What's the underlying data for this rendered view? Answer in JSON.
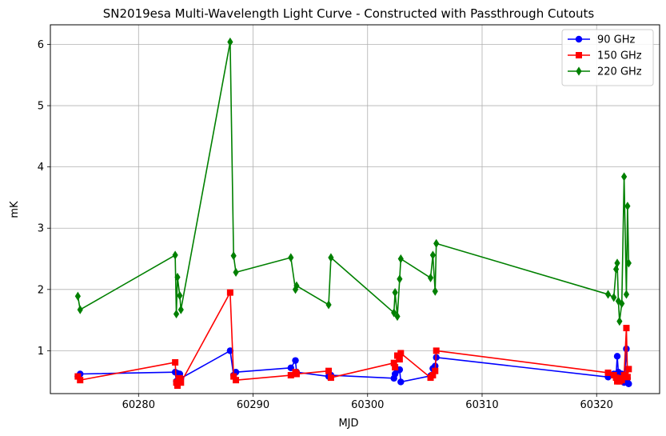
{
  "chart_data": {
    "type": "line",
    "title": "SN2019esa Multi-Wavelength Light Curve - Constructed with Passthrough Cutouts",
    "xlabel": "MJD",
    "ylabel": "mK",
    "xlim": [
      60272.3,
      60325.5
    ],
    "ylim": [
      0.3,
      6.32
    ],
    "xticks": [
      60280,
      60290,
      60300,
      60310,
      60320
    ],
    "yticks": [
      1,
      2,
      3,
      4,
      5,
      6
    ],
    "grid": true,
    "legend_position": "top-right",
    "series": [
      {
        "name": "90 GHz",
        "color": "#0000ff",
        "marker": "circle",
        "x": [
          60274.7,
          60274.9,
          60283.2,
          60283.3,
          60283.4,
          60283.6,
          60283.7,
          60288.0,
          60288.3,
          60288.5,
          60293.3,
          60293.7,
          60293.8,
          60296.6,
          60296.8,
          60302.3,
          60302.4,
          60302.6,
          60302.8,
          60302.9,
          60305.5,
          60305.7,
          60305.9,
          60306.0,
          60321.0,
          60321.5,
          60321.7,
          60321.8,
          60321.9,
          60322.0,
          60322.2,
          60322.4,
          60322.6,
          60322.7,
          60322.8
        ],
        "y": [
          0.58,
          0.62,
          0.65,
          0.5,
          0.63,
          0.62,
          0.55,
          1.0,
          0.6,
          0.65,
          0.72,
          0.84,
          0.65,
          0.58,
          0.6,
          0.55,
          0.62,
          0.68,
          0.69,
          0.49,
          0.59,
          0.71,
          0.75,
          0.89,
          0.57,
          0.62,
          0.6,
          0.91,
          0.65,
          0.52,
          0.62,
          0.48,
          1.03,
          0.55,
          0.46
        ]
      },
      {
        "name": "150 GHz",
        "color": "#ff0000",
        "marker": "square",
        "x": [
          60274.7,
          60274.9,
          60283.2,
          60283.3,
          60283.4,
          60283.6,
          60283.7,
          60288.0,
          60288.3,
          60288.5,
          60293.3,
          60293.7,
          60293.8,
          60296.6,
          60296.8,
          60302.3,
          60302.4,
          60302.6,
          60302.8,
          60302.9,
          60305.5,
          60305.7,
          60305.9,
          60306.0,
          60321.0,
          60321.5,
          60321.7,
          60321.8,
          60321.9,
          60322.0,
          60322.2,
          60322.4,
          60322.6,
          60322.7,
          60322.8
        ],
        "y": [
          0.58,
          0.52,
          0.81,
          0.48,
          0.43,
          0.55,
          0.48,
          1.95,
          0.58,
          0.52,
          0.6,
          0.65,
          0.62,
          0.67,
          0.56,
          0.8,
          0.73,
          0.92,
          0.86,
          0.96,
          0.56,
          0.6,
          0.67,
          1.0,
          0.64,
          0.6,
          0.56,
          0.5,
          0.55,
          0.5,
          0.52,
          0.6,
          1.37,
          0.57,
          0.7
        ]
      },
      {
        "name": "220 GHz",
        "color": "#008000",
        "marker": "diamond",
        "x": [
          60274.7,
          60274.9,
          60283.2,
          60283.3,
          60283.4,
          60283.6,
          60283.7,
          60288.0,
          60288.3,
          60288.5,
          60293.3,
          60293.7,
          60293.8,
          60296.6,
          60296.8,
          60302.3,
          60302.4,
          60302.6,
          60302.8,
          60302.9,
          60305.5,
          60305.7,
          60305.9,
          60306.0,
          60321.0,
          60321.5,
          60321.7,
          60321.8,
          60321.9,
          60322.0,
          60322.2,
          60322.4,
          60322.6,
          60322.7,
          60322.8
        ],
        "y": [
          1.89,
          1.67,
          2.56,
          1.6,
          2.2,
          1.9,
          1.67,
          6.04,
          2.55,
          2.28,
          2.52,
          2.0,
          2.06,
          1.75,
          2.52,
          1.62,
          1.95,
          1.56,
          2.17,
          2.5,
          2.19,
          2.56,
          1.97,
          2.75,
          1.92,
          1.87,
          2.33,
          2.43,
          1.81,
          1.48,
          1.77,
          3.84,
          1.92,
          3.36,
          2.43
        ]
      }
    ]
  }
}
